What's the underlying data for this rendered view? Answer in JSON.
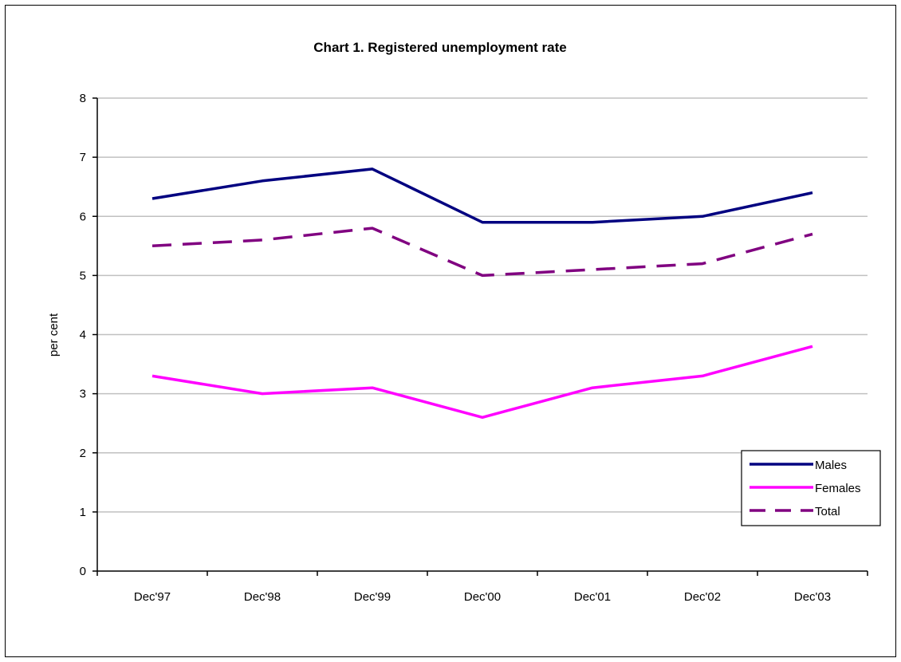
{
  "chart_data": {
    "type": "line",
    "title": "Chart 1.  Registered unemployment rate",
    "xlabel": "",
    "ylabel": "per cent",
    "categories": [
      "Dec'97",
      "Dec'98",
      "Dec'99",
      "Dec'00",
      "Dec'01",
      "Dec'02",
      "Dec'03"
    ],
    "ylim": [
      0,
      8
    ],
    "yticks": [
      0,
      1,
      2,
      3,
      4,
      5,
      6,
      7,
      8
    ],
    "grid": true,
    "legend_position": "bottom-right",
    "series": [
      {
        "name": "Males",
        "color": "#000080",
        "dash": "solid",
        "values": [
          6.3,
          6.6,
          6.8,
          5.9,
          5.9,
          6.0,
          6.4
        ]
      },
      {
        "name": "Females",
        "color": "#ff00ff",
        "dash": "solid",
        "values": [
          3.3,
          3.0,
          3.1,
          2.6,
          3.1,
          3.3,
          3.8
        ]
      },
      {
        "name": "Total",
        "color": "#800080",
        "dash": "dashed",
        "values": [
          5.5,
          5.6,
          5.8,
          5.0,
          5.1,
          5.2,
          5.7
        ]
      }
    ]
  }
}
